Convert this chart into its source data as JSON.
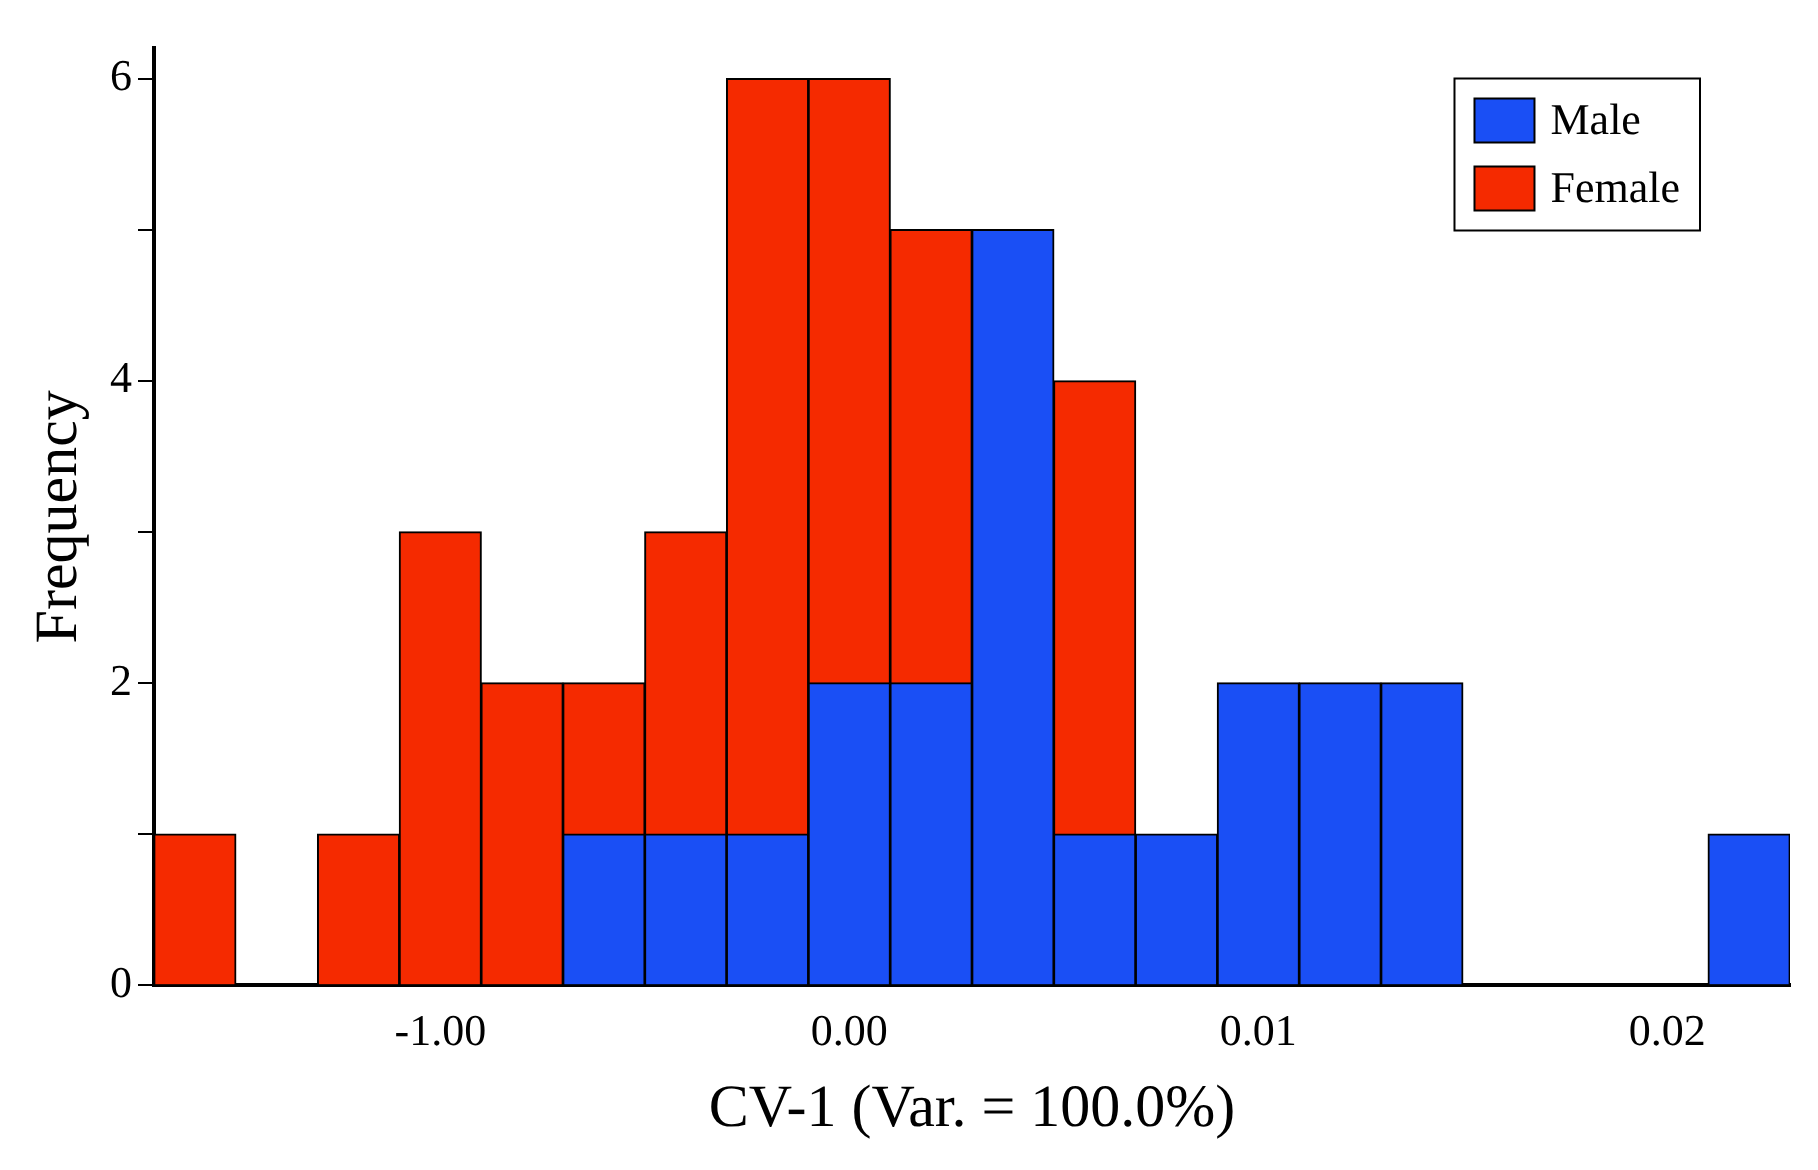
{
  "chart_data": {
    "type": "bar",
    "stacked": true,
    "xlabel": "CV-1 (Var. = 100.0%)",
    "ylabel": "Frequency",
    "categories": [
      null,
      null,
      null,
      "-1.00",
      null,
      null,
      null,
      null,
      "0.00",
      null,
      null,
      null,
      null,
      "0.01",
      null,
      null,
      null,
      null,
      "0.02",
      null
    ],
    "series": [
      {
        "name": "Male",
        "color": "#1a4ff5",
        "values": [
          0,
          0,
          0,
          0,
          0,
          1,
          1,
          1,
          2,
          2,
          5,
          1,
          1,
          2,
          2,
          2,
          0,
          0,
          0,
          1
        ]
      },
      {
        "name": "Female",
        "color": "#f52a00",
        "values": [
          1,
          0,
          1,
          3,
          2,
          1,
          2,
          5,
          4,
          3,
          0,
          3,
          0,
          0,
          0,
          0,
          0,
          0,
          0,
          0
        ]
      }
    ],
    "ylim": [
      0,
      6.2
    ],
    "yticks": [
      0,
      {
        "value": 1,
        "label": null
      },
      2,
      {
        "value": 3,
        "label": null
      },
      4,
      {
        "value": 5,
        "label": null
      },
      6
    ],
    "grid": false,
    "legend": "top right"
  }
}
